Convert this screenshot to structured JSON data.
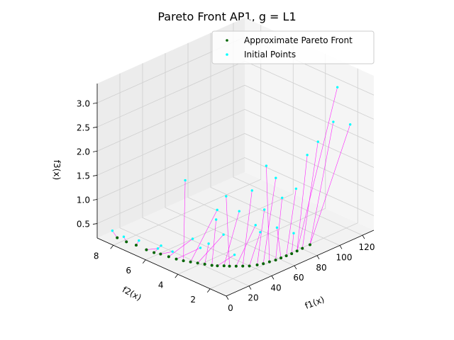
{
  "chart_data": {
    "type": "scatter3d",
    "title": "Pareto Front AP1, g = L1",
    "xlabel": "f1(x)",
    "ylabel": "f2(x)",
    "zlabel": "f3(x)",
    "xlim": [
      0,
      130
    ],
    "ylim": [
      1,
      9
    ],
    "zlim": [
      0.2,
      3.4
    ],
    "xticks": [
      "0",
      "20",
      "40",
      "60",
      "80",
      "100",
      "120"
    ],
    "yticks": [
      "2",
      "4",
      "6",
      "8"
    ],
    "zticks": [
      "0.5",
      "1.0",
      "1.5",
      "2.0",
      "2.5",
      "3.0"
    ],
    "legend": {
      "position": "top-right",
      "entries": [
        "Approximate Pareto Front",
        "Initial Points"
      ]
    },
    "colors": {
      "pareto": "#006400",
      "initial": "#00ffff",
      "connector": "#ff00ff",
      "pane": "#f2f2f2",
      "grid": "#cfcfcf"
    },
    "series": [
      {
        "name": "Approximate Pareto Front",
        "points": [
          [
            2.0,
            7.9,
            0.35
          ],
          [
            3.0,
            7.4,
            0.33
          ],
          [
            4.5,
            6.9,
            0.32
          ],
          [
            5.0,
            6.3,
            0.31
          ],
          [
            6.0,
            5.9,
            0.3
          ],
          [
            7.5,
            5.6,
            0.3
          ],
          [
            9.0,
            5.2,
            0.29
          ],
          [
            10.0,
            4.8,
            0.29
          ],
          [
            12.0,
            4.5,
            0.28
          ],
          [
            14.0,
            4.2,
            0.28
          ],
          [
            16.0,
            3.9,
            0.28
          ],
          [
            18.0,
            3.6,
            0.28
          ],
          [
            20.0,
            3.3,
            0.28
          ],
          [
            22.0,
            3.1,
            0.28
          ],
          [
            25.0,
            2.9,
            0.28
          ],
          [
            27.0,
            2.7,
            0.28
          ],
          [
            30.0,
            2.5,
            0.28
          ],
          [
            33.0,
            2.3,
            0.28
          ],
          [
            36.0,
            2.1,
            0.28
          ],
          [
            40.0,
            1.9,
            0.29
          ],
          [
            44.0,
            1.8,
            0.29
          ],
          [
            48.0,
            1.7,
            0.3
          ],
          [
            52.0,
            1.6,
            0.31
          ],
          [
            56.0,
            1.55,
            0.32
          ],
          [
            60.0,
            1.5,
            0.33
          ],
          [
            64.0,
            1.45,
            0.34
          ],
          [
            68.0,
            1.4,
            0.36
          ],
          [
            72.0,
            1.35,
            0.38
          ],
          [
            78.0,
            1.3,
            0.4
          ]
        ]
      },
      {
        "name": "Initial Points",
        "points": [
          [
            2.0,
            8.2,
            0.45
          ],
          [
            3.5,
            7.6,
            0.4
          ],
          [
            5.5,
            6.8,
            0.42
          ],
          [
            6.5,
            5.5,
            0.5
          ],
          [
            8.0,
            5.8,
            0.38
          ],
          [
            9.5,
            5.0,
            0.42
          ],
          [
            13.0,
            4.0,
            0.8
          ],
          [
            15.0,
            4.6,
            1.9
          ],
          [
            17.0,
            3.8,
            0.6
          ],
          [
            19.0,
            2.9,
            1.5
          ],
          [
            20.0,
            3.5,
            0.7
          ],
          [
            26.0,
            3.0,
            0.9
          ],
          [
            28.0,
            3.6,
            1.1
          ],
          [
            30.0,
            2.6,
            0.5
          ],
          [
            34.0,
            3.4,
            1.55
          ],
          [
            37.0,
            2.8,
            1.3
          ],
          [
            40.0,
            2.0,
            1.1
          ],
          [
            44.0,
            2.5,
            1.7
          ],
          [
            47.0,
            2.2,
            0.85
          ],
          [
            52.0,
            2.3,
            1.25
          ],
          [
            55.0,
            1.8,
            1.95
          ],
          [
            58.0,
            2.6,
            2.05
          ],
          [
            62.0,
            1.9,
            1.45
          ],
          [
            66.0,
            2.5,
            0.7
          ],
          [
            70.0,
            1.6,
            1.6
          ],
          [
            75.0,
            2.1,
            0.55
          ],
          [
            82.0,
            1.75,
            2.15
          ],
          [
            95.0,
            2.0,
            2.25
          ],
          [
            100.0,
            1.4,
            2.7
          ],
          [
            105.0,
            1.5,
            3.35
          ],
          [
            112.0,
            1.2,
            2.55
          ]
        ]
      }
    ],
    "connections": [
      [
        0,
        0
      ],
      [
        1,
        1
      ],
      [
        2,
        2
      ],
      [
        3,
        4
      ],
      [
        4,
        3
      ],
      [
        5,
        5
      ],
      [
        6,
        6
      ],
      [
        7,
        8
      ],
      [
        8,
        7
      ],
      [
        9,
        9
      ],
      [
        10,
        11
      ],
      [
        11,
        10
      ],
      [
        12,
        12
      ],
      [
        13,
        13
      ],
      [
        14,
        15
      ],
      [
        15,
        14
      ],
      [
        16,
        16
      ],
      [
        17,
        17
      ],
      [
        18,
        18
      ],
      [
        19,
        19
      ],
      [
        20,
        20
      ],
      [
        21,
        21
      ],
      [
        22,
        22
      ],
      [
        23,
        23
      ],
      [
        24,
        24
      ],
      [
        25,
        25
      ],
      [
        26,
        26
      ],
      [
        27,
        27
      ],
      [
        28,
        28
      ],
      [
        26,
        29
      ],
      [
        28,
        30
      ]
    ]
  }
}
